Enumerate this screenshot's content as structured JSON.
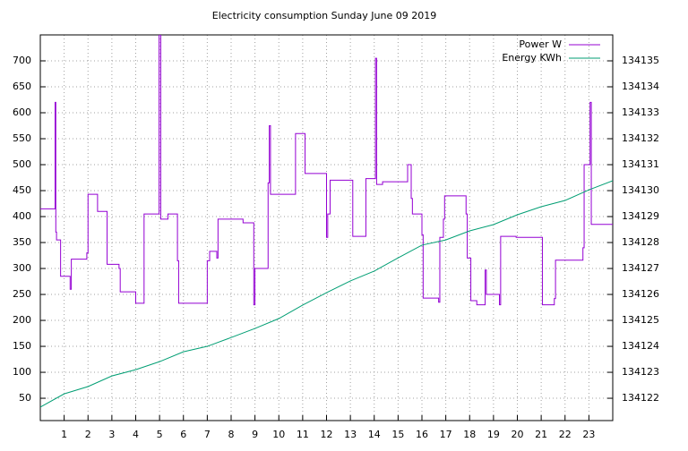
{
  "chart_data": {
    "type": "line",
    "title": "Electricity consumption Sunday June 09 2019",
    "xlim": [
      0,
      24
    ],
    "xticks": [
      1,
      2,
      3,
      4,
      5,
      6,
      7,
      8,
      9,
      10,
      11,
      12,
      13,
      14,
      15,
      16,
      17,
      18,
      19,
      20,
      21,
      22,
      23
    ],
    "ylim": [
      7,
      750
    ],
    "yticks": [
      50,
      100,
      150,
      200,
      250,
      300,
      350,
      400,
      450,
      500,
      550,
      600,
      650,
      700
    ],
    "y2lim": [
      134121.14,
      134136
    ],
    "y2ticks": [
      134122,
      134123,
      134124,
      134125,
      134126,
      134127,
      134128,
      134129,
      134130,
      134131,
      134132,
      134133,
      134134,
      134135
    ],
    "grid": true,
    "legend": "top-right",
    "series": [
      {
        "name": "Power W",
        "color": "#9400d3",
        "axis": "y",
        "style": "steps",
        "x": [
          0,
          0.62,
          0.65,
          0.68,
          0.85,
          1.25,
          1.3,
          1.95,
          2.0,
          2.4,
          2.8,
          3.3,
          3.35,
          4.0,
          4.35,
          4.98,
          5.05,
          5.35,
          5.75,
          5.8,
          7.0,
          7.1,
          7.4,
          7.45,
          8.5,
          8.95,
          9.0,
          9.55,
          9.6,
          9.65,
          10.7,
          11.1,
          12.0,
          12.05,
          12.15,
          13.1,
          13.65,
          14.05,
          14.1,
          14.35,
          15.4,
          15.55,
          15.6,
          16.0,
          16.05,
          16.7,
          16.75,
          16.9,
          16.95,
          17.85,
          17.9,
          18.05,
          18.3,
          18.65,
          18.7,
          19.25,
          19.3,
          19.95,
          21.05,
          21.55,
          21.6,
          22.75,
          22.8,
          23.05,
          23.1,
          24
        ],
        "values": [
          415,
          620,
          370,
          355,
          285,
          260,
          318,
          330,
          443,
          410,
          308,
          300,
          255,
          233,
          405,
          750,
          395,
          405,
          315,
          233,
          315,
          333,
          320,
          395,
          388,
          230,
          300,
          465,
          575,
          443,
          560,
          483,
          360,
          405,
          470,
          362,
          473,
          705,
          462,
          467,
          500,
          435,
          405,
          365,
          243,
          235,
          360,
          395,
          440,
          405,
          320,
          238,
          230,
          297,
          250,
          230,
          362,
          360,
          230,
          242,
          316,
          340,
          500,
          620,
          385,
          385
        ]
      },
      {
        "name": "Energy KWh",
        "color": "#009e73",
        "axis": "y2",
        "x": [
          0,
          1,
          2,
          3,
          4,
          5,
          6,
          7,
          8,
          9,
          10,
          11,
          12,
          13,
          14,
          15,
          16,
          17,
          18,
          19,
          20,
          21,
          22,
          23,
          24
        ],
        "values": [
          134121.66,
          134122.17,
          134122.45,
          134122.86,
          134123.1,
          134123.41,
          134123.79,
          134124.0,
          134124.34,
          134124.69,
          134125.07,
          134125.59,
          134126.07,
          134126.52,
          134126.9,
          134127.41,
          134127.9,
          134128.1,
          134128.45,
          134128.69,
          134129.07,
          134129.38,
          134129.62,
          134130.03,
          134130.38
        ]
      }
    ]
  }
}
